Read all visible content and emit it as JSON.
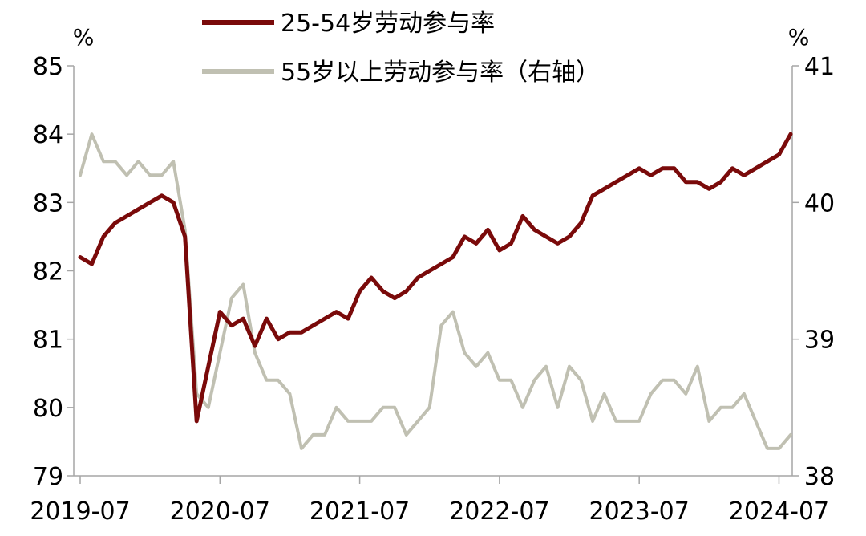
{
  "chart_data": {
    "type": "line",
    "y_unit_left": "%",
    "y_unit_right": "%",
    "x_ticks": [
      "2019-07",
      "2020-07",
      "2021-07",
      "2022-07",
      "2023-07",
      "2024-07"
    ],
    "y_left_ticks": [
      "79",
      "80",
      "81",
      "82",
      "83",
      "84",
      "85"
    ],
    "y_right_ticks": [
      "38",
      "39",
      "40",
      "41"
    ],
    "ylim_left": [
      79,
      85
    ],
    "ylim_right": [
      38,
      41
    ],
    "series": [
      {
        "name": "25-54岁劳动参与率",
        "axis": "left",
        "color": "#7a0a0a",
        "values": [
          82.2,
          82.1,
          82.5,
          82.7,
          82.8,
          82.9,
          83.0,
          83.1,
          83.0,
          82.5,
          79.8,
          80.6,
          81.4,
          81.2,
          81.3,
          80.9,
          81.3,
          81.0,
          81.1,
          81.1,
          81.2,
          81.3,
          81.4,
          81.3,
          81.7,
          81.9,
          81.7,
          81.6,
          81.7,
          81.9,
          82.0,
          82.1,
          82.2,
          82.5,
          82.4,
          82.6,
          82.3,
          82.4,
          82.8,
          82.6,
          82.5,
          82.4,
          82.5,
          82.7,
          83.1,
          83.2,
          83.3,
          83.4,
          83.5,
          83.4,
          83.5,
          83.5,
          83.3,
          83.3,
          83.2,
          83.3,
          83.5,
          83.4,
          83.5,
          83.6,
          83.7,
          84.0
        ]
      },
      {
        "name": "55岁以上劳动参与率（右轴）",
        "axis": "right",
        "color": "#c0c0b2",
        "values": [
          40.2,
          40.5,
          40.3,
          40.3,
          40.2,
          40.3,
          40.2,
          40.2,
          40.3,
          39.8,
          38.6,
          38.5,
          38.9,
          39.3,
          39.4,
          38.9,
          38.7,
          38.7,
          38.6,
          38.2,
          38.3,
          38.3,
          38.5,
          38.4,
          38.4,
          38.4,
          38.5,
          38.5,
          38.3,
          38.4,
          38.5,
          39.1,
          39.2,
          38.9,
          38.8,
          38.9,
          38.7,
          38.7,
          38.5,
          38.7,
          38.8,
          38.5,
          38.8,
          38.7,
          38.4,
          38.6,
          38.4,
          38.4,
          38.4,
          38.6,
          38.7,
          38.7,
          38.6,
          38.8,
          38.4,
          38.5,
          38.5,
          38.6,
          38.4,
          38.2,
          38.2,
          38.3
        ]
      }
    ]
  }
}
